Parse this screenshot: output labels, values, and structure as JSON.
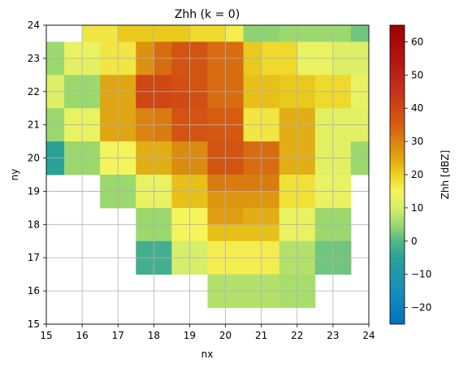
{
  "chart_data": {
    "type": "heatmap",
    "title": "Zhh (k = 0)",
    "xlabel": "nx",
    "ylabel": "ny",
    "colorbar_label": "Zhh [dBZ]",
    "x_ticks": [
      "15",
      "16",
      "17",
      "18",
      "19",
      "20",
      "21",
      "22",
      "23",
      "24"
    ],
    "y_ticks": [
      "15",
      "16",
      "17",
      "18",
      "19",
      "20",
      "21",
      "22",
      "23",
      "24"
    ],
    "colorbar_ticks": [
      "−20",
      "−10",
      "0",
      "10",
      "20",
      "30",
      "40",
      "50",
      "60"
    ],
    "xlim": [
      15,
      24
    ],
    "ylim": [
      15,
      24
    ],
    "clim": [
      -25,
      65
    ],
    "grid": true,
    "cell_size": 0.5,
    "x_cells_start": 15,
    "y_cells_start": 15,
    "rows_top_to_bottom": [
      [
        null,
        null,
        17,
        17,
        21,
        21,
        21,
        21,
        19,
        19,
        16,
        4,
        4,
        5,
        5,
        5,
        5,
        2
      ],
      [
        5,
        13,
        13,
        17,
        17,
        28,
        33,
        37,
        37,
        33,
        33,
        21,
        19,
        19,
        13,
        13,
        11,
        11
      ],
      [
        5,
        12,
        12,
        17,
        17,
        28,
        33,
        37,
        37,
        33,
        33,
        21,
        19,
        19,
        13,
        13,
        11,
        11
      ],
      [
        11,
        5,
        5,
        25,
        25,
        40,
        40,
        38,
        37,
        33,
        33,
        22,
        22,
        21,
        21,
        19,
        19,
        13
      ],
      [
        11,
        5,
        5,
        25,
        25,
        40,
        40,
        39,
        38,
        33,
        33,
        22,
        22,
        21,
        21,
        19,
        19,
        13
      ],
      [
        5,
        13,
        13,
        25,
        25,
        30,
        31,
        37,
        37,
        35,
        35,
        17,
        17,
        24,
        24,
        12,
        12,
        12
      ],
      [
        5,
        13,
        13,
        25,
        25,
        30,
        31,
        37,
        37,
        36,
        36,
        17,
        17,
        24,
        24,
        12,
        12,
        12
      ],
      [
        -5,
        5,
        5,
        15,
        15,
        24,
        24,
        29,
        29,
        37,
        37,
        33,
        33,
        24,
        24,
        12,
        12,
        5
      ],
      [
        -5,
        5,
        5,
        15,
        15,
        24,
        24,
        29,
        29,
        37,
        37,
        33,
        33,
        24,
        24,
        12,
        12,
        5
      ],
      [
        null,
        null,
        null,
        5,
        5,
        13,
        13,
        22,
        22,
        31,
        31,
        31,
        31,
        18,
        18,
        13,
        13,
        null
      ],
      [
        null,
        null,
        null,
        5,
        5,
        13,
        13,
        22,
        22,
        27,
        27,
        27,
        27,
        18,
        18,
        13,
        13,
        null
      ],
      [
        null,
        null,
        null,
        null,
        null,
        5,
        5,
        15,
        15,
        26,
        26,
        24,
        24,
        13,
        13,
        5,
        5,
        null
      ],
      [
        null,
        null,
        null,
        null,
        null,
        5,
        5,
        15,
        15,
        22,
        22,
        22,
        22,
        13,
        13,
        5,
        5,
        null
      ],
      [
        null,
        null,
        null,
        null,
        null,
        -2,
        -2,
        10,
        10,
        16,
        16,
        16,
        16,
        7,
        7,
        2,
        2,
        null
      ],
      [
        null,
        null,
        null,
        null,
        null,
        -2,
        -2,
        10,
        10,
        16,
        16,
        16,
        16,
        7,
        7,
        2,
        2,
        null
      ],
      [
        null,
        null,
        null,
        null,
        null,
        null,
        null,
        null,
        null,
        7,
        7,
        7,
        7,
        6,
        6,
        null,
        null,
        null
      ],
      [
        null,
        null,
        null,
        null,
        null,
        null,
        null,
        null,
        null,
        7,
        7,
        7,
        7,
        6,
        6,
        null,
        null,
        null
      ],
      [
        null,
        null,
        null,
        null,
        null,
        null,
        null,
        null,
        null,
        null,
        null,
        null,
        null,
        null,
        null,
        null,
        null,
        null
      ]
    ]
  }
}
